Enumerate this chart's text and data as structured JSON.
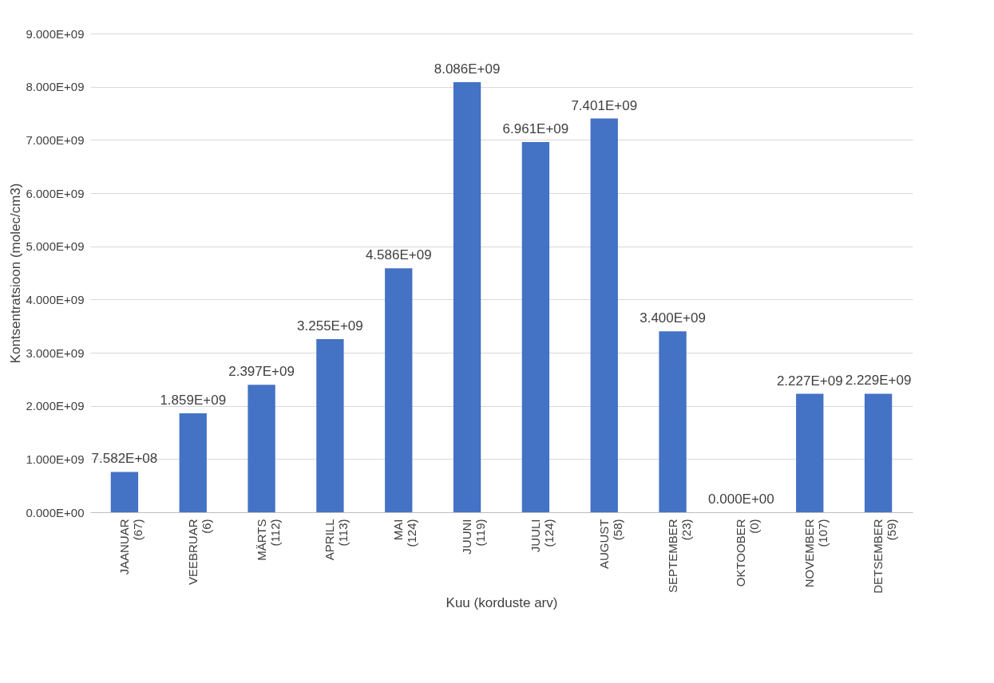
{
  "chart_data": {
    "type": "bar",
    "xlabel": "Kuu (korduste arv)",
    "ylabel": "Kontsentratsioon (molec/cm3)",
    "categories": [
      "JAANUAR (67)",
      "VEEBRUAR (6)",
      "MÄRTS (112)",
      "APRILL (113)",
      "MAI (124)",
      "JUUNI (119)",
      "JUULI (124)",
      "AUGUST (58)",
      "SEPTEMBER (23)",
      "OKTOOBER (0)",
      "NOVEMBER (107)",
      "DETSEMBER (59)"
    ],
    "values": [
      758200000,
      1859000000,
      2397000000,
      3255000000,
      4586000000,
      8086000000,
      6961000000,
      7401000000,
      3400000000,
      0,
      2227000000,
      2229000000
    ],
    "value_labels": [
      "7.582E+08",
      "1.859E+09",
      "2.397E+09",
      "3.255E+09",
      "4.586E+09",
      "8.086E+09",
      "6.961E+09",
      "7.401E+09",
      "3.400E+09",
      "0.000E+00",
      "2.227E+09",
      "2.229E+09"
    ],
    "color": "#4472c4",
    "ylim": [
      0,
      9000000000
    ],
    "yticks": [
      {
        "value": 0,
        "label": "0.000E+00"
      },
      {
        "value": 1000000000,
        "label": "1.000E+09"
      },
      {
        "value": 2000000000,
        "label": "2.000E+09"
      },
      {
        "value": 3000000000,
        "label": "3.000E+09"
      },
      {
        "value": 4000000000,
        "label": "4.000E+09"
      },
      {
        "value": 5000000000,
        "label": "5.000E+09"
      },
      {
        "value": 6000000000,
        "label": "6.000E+09"
      },
      {
        "value": 7000000000,
        "label": "7.000E+09"
      },
      {
        "value": 8000000000,
        "label": "8.000E+09"
      },
      {
        "value": 9000000000,
        "label": "9.000E+09"
      }
    ],
    "grid": "y"
  }
}
